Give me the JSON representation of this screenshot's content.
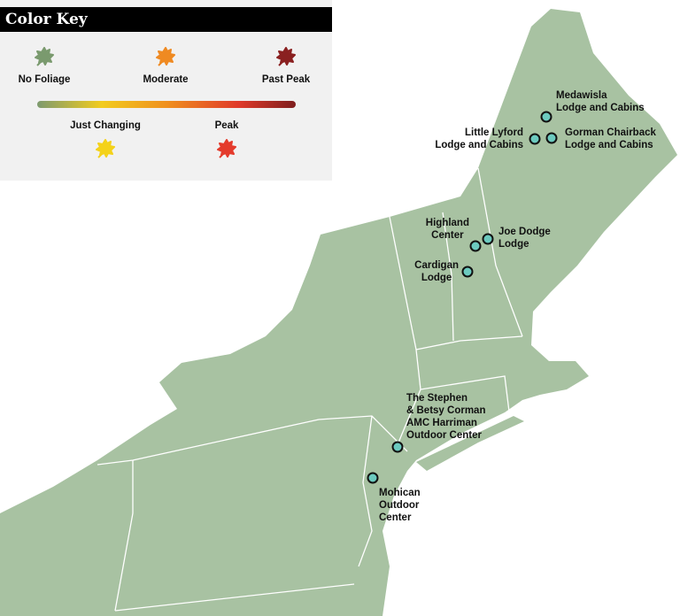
{
  "legend": {
    "title": "Color Key",
    "items": [
      {
        "label": "No Foliage",
        "color": "#7a9a6e"
      },
      {
        "label": "Moderate",
        "color": "#ef8a22"
      },
      {
        "label": "Past Peak",
        "color": "#8a2020"
      },
      {
        "label": "Just Changing",
        "color": "#f4d21a"
      },
      {
        "label": "Peak",
        "color": "#e43b2c"
      }
    ]
  },
  "map": {
    "land_color": "#a8c2a2",
    "marker_color": "#6ccabf"
  },
  "sites": [
    {
      "name": "Medawisla\nLodge and Cabins"
    },
    {
      "name": "Little Lyford\nLodge and Cabins"
    },
    {
      "name": "Gorman Chairback\nLodge and Cabins"
    },
    {
      "name": "Highland\nCenter"
    },
    {
      "name": "Joe Dodge\nLodge"
    },
    {
      "name": "Cardigan\nLodge"
    },
    {
      "name": "The Stephen\n& Betsy Corman\nAMC Harriman\nOutdoor Center"
    },
    {
      "name": "Mohican\nOutdoor\nCenter"
    }
  ]
}
